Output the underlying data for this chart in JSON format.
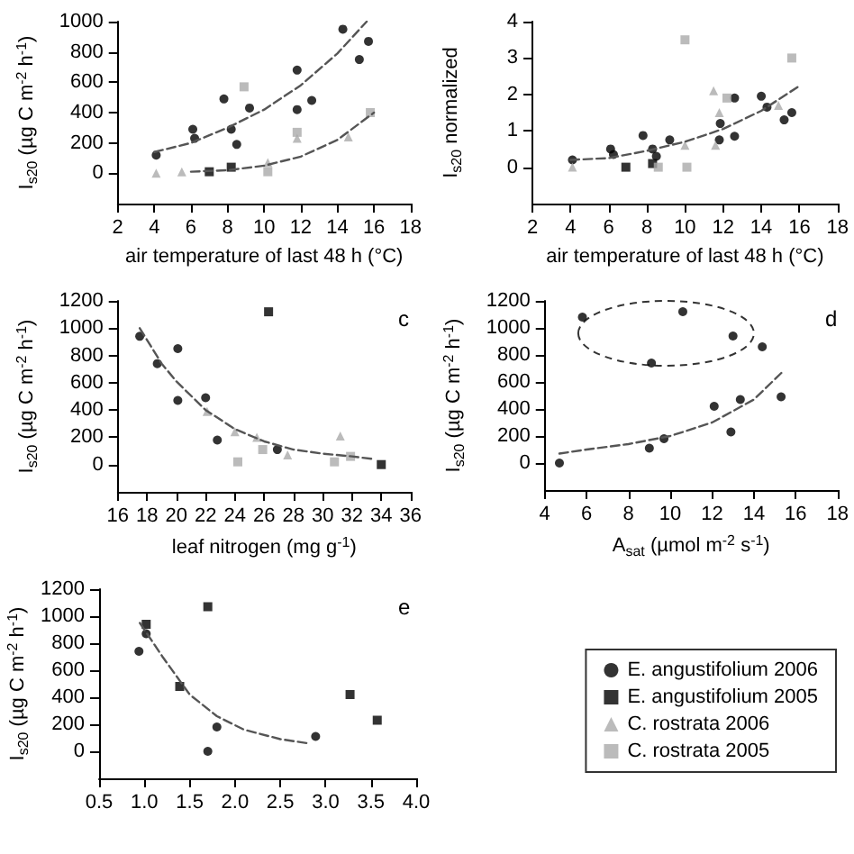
{
  "chart_data": [
    {
      "type": "scatter",
      "xlabel": "air temperature of last 48 h (°C)",
      "ylabel": "I$_{s20}$ (µg C m$^{-2}$ h$^{-1}$)",
      "xlim": [
        2,
        18
      ],
      "xticks": [
        2,
        4,
        6,
        8,
        10,
        12,
        14,
        16,
        18
      ],
      "ylim": [
        -200,
        1000
      ],
      "yticks": [
        0,
        200,
        400,
        600,
        800,
        1000
      ],
      "legend": false,
      "series": [
        {
          "color": "#000000",
          "marker": "circle",
          "x": [
            4.1,
            6.1,
            6.2,
            7.8,
            8.2,
            8.5,
            9.2,
            11.8,
            11.8,
            12.6,
            14.3,
            15.2,
            15.7
          ],
          "values": [
            120,
            290,
            230,
            490,
            290,
            190,
            430,
            680,
            420,
            480,
            950,
            750,
            870
          ]
        },
        {
          "color": "#000000",
          "marker": "square",
          "x": [
            7.0,
            8.2
          ],
          "values": [
            10,
            40
          ]
        },
        {
          "color": "#aaaaaa",
          "marker": "triangle",
          "x": [
            4.1,
            5.5,
            10.2,
            11.8,
            14.6
          ],
          "values": [
            0,
            10,
            70,
            230,
            240
          ]
        },
        {
          "color": "#aaaaaa",
          "marker": "square",
          "x": [
            8.9,
            10.2,
            11.8,
            15.8
          ],
          "values": [
            570,
            10,
            270,
            400
          ]
        },
        {
          "type": "line",
          "color": "#555555",
          "marker": "none",
          "line_style": "dashed",
          "x": [
            4,
            6,
            8,
            10,
            12,
            14,
            15.6
          ],
          "values": [
            140,
            200,
            300,
            420,
            580,
            790,
            1000
          ]
        },
        {
          "type": "line",
          "color": "#555555",
          "marker": "none",
          "line_style": "dashed",
          "x": [
            6,
            8,
            10,
            12,
            14,
            16
          ],
          "values": [
            10,
            20,
            50,
            110,
            220,
            400
          ]
        }
      ]
    },
    {
      "type": "scatter",
      "xlabel": "air temperature of last 48 h (°C)",
      "ylabel": "I$_{s20}$ normalized",
      "xlim": [
        2,
        18
      ],
      "xticks": [
        2,
        4,
        6,
        8,
        10,
        12,
        14,
        16,
        18
      ],
      "ylim": [
        -1,
        4
      ],
      "yticks": [
        0,
        1,
        2,
        3,
        4
      ],
      "legend": false,
      "series": [
        {
          "color": "#000000",
          "marker": "circle",
          "x": [
            4.1,
            6.1,
            6.25,
            7.8,
            8.3,
            8.5,
            9.2,
            11.85,
            11.8,
            12.6,
            12.6,
            14.0,
            14.3,
            15.2,
            15.6
          ],
          "values": [
            0.2,
            0.5,
            0.35,
            0.87,
            0.5,
            0.3,
            0.75,
            1.2,
            0.75,
            1.9,
            0.85,
            1.95,
            1.65,
            1.3,
            1.5
          ]
        },
        {
          "color": "#000000",
          "marker": "square",
          "x": [
            6.9,
            8.3
          ],
          "values": [
            0,
            0.1
          ]
        },
        {
          "color": "#aaaaaa",
          "marker": "triangle",
          "x": [
            4.1,
            10.0,
            11.5,
            11.8,
            11.6,
            14.9
          ],
          "values": [
            0,
            0.6,
            2.1,
            1.5,
            0.6,
            1.7
          ]
        },
        {
          "color": "#aaaaaa",
          "marker": "square",
          "x": [
            8.6,
            10.0,
            10.1,
            12.2,
            15.6
          ],
          "values": [
            0,
            3.5,
            0,
            1.9,
            3.0
          ]
        },
        {
          "type": "line",
          "color": "#555555",
          "marker": "none",
          "line_style": "dashed",
          "x": [
            4,
            6,
            8,
            10,
            12,
            14,
            15.9
          ],
          "values": [
            0.2,
            0.25,
            0.45,
            0.7,
            1.05,
            1.55,
            2.2
          ]
        }
      ]
    },
    {
      "type": "scatter",
      "xlabel": "leaf nitrogen (mg g$^{-1}$)",
      "ylabel": "I$_{s20}$ (µg C m$^{-2}$ h$^{-1}$)",
      "xlim": [
        16,
        36
      ],
      "xticks": [
        16,
        18,
        20,
        22,
        24,
        26,
        28,
        30,
        32,
        34,
        36
      ],
      "ylim": [
        -200,
        1200
      ],
      "yticks": [
        0,
        200,
        400,
        600,
        800,
        1000,
        1200
      ],
      "legend": false,
      "annotations": [
        "c"
      ],
      "series": [
        {
          "color": "#000000",
          "marker": "circle",
          "x": [
            17.5,
            18.7,
            20.1,
            20.1,
            22.0,
            22.8,
            26.9
          ],
          "values": [
            940,
            740,
            850,
            470,
            490,
            180,
            110
          ]
        },
        {
          "color": "#000000",
          "marker": "square",
          "x": [
            26.3,
            34.0
          ],
          "values": [
            1120,
            0
          ]
        },
        {
          "color": "#aaaaaa",
          "marker": "triangle",
          "x": [
            22.1,
            24.0,
            25.5,
            27.6,
            31.2
          ],
          "values": [
            390,
            240,
            200,
            70,
            210
          ]
        },
        {
          "color": "#aaaaaa",
          "marker": "square",
          "x": [
            24.2,
            25.9,
            30.8,
            31.9
          ],
          "values": [
            20,
            110,
            20,
            60
          ]
        },
        {
          "type": "line",
          "color": "#555555",
          "marker": "none",
          "line_style": "dashed",
          "x": [
            17.5,
            19,
            20,
            22,
            24,
            26,
            28,
            30,
            32,
            33.5
          ],
          "values": [
            1000,
            740,
            610,
            400,
            260,
            170,
            110,
            80,
            60,
            40
          ]
        }
      ]
    },
    {
      "type": "scatter",
      "xlabel": "A$_{sat}$ (µmol m$^{-2}$ s$^{-1}$)",
      "ylabel": "I$_{s20}$ (µg C m$^{-2}$ h$^{-1}$)",
      "xlim": [
        4,
        18
      ],
      "xticks": [
        4,
        6,
        8,
        10,
        12,
        14,
        16,
        18
      ],
      "ylim": [
        -200,
        1200
      ],
      "yticks": [
        0,
        200,
        400,
        600,
        800,
        1000,
        1200
      ],
      "legend": false,
      "annotations": [
        "d"
      ],
      "series": [
        {
          "color": "#000000",
          "marker": "circle",
          "x": [
            4.7,
            5.8,
            9.1,
            10.6,
            13.0,
            14.4,
            9.0,
            9.7,
            12.1,
            12.9,
            13.35,
            15.3
          ],
          "values": [
            0,
            1080,
            740,
            1120,
            940,
            860,
            110,
            180,
            420,
            230,
            470,
            490
          ]
        },
        {
          "type": "line",
          "color": "#555555",
          "marker": "none",
          "line_style": "dashed",
          "x": [
            4.7,
            6,
            8,
            10,
            12,
            14,
            15.4
          ],
          "values": [
            70,
            100,
            140,
            200,
            300,
            470,
            680
          ]
        }
      ]
    },
    {
      "type": "scatter",
      "ylabel": "I$_{s20}$ (µg C m$^{-2}$ h$^{-1}$)",
      "xlim": [
        0.5,
        4.0
      ],
      "xticks": [
        0.5,
        {
          "value": 1,
          "label": "1.0"
        },
        1.5,
        {
          "value": 2,
          "label": "2.0"
        },
        2.5,
        {
          "value": 3,
          "label": "3.0"
        },
        3.5,
        {
          "value": 4,
          "label": "4.0"
        }
      ],
      "ylim": [
        -200,
        1200
      ],
      "yticks": [
        0,
        200,
        400,
        600,
        800,
        1000,
        1200
      ],
      "legend": "right",
      "annotations": [
        "e"
      ],
      "series": [
        {
          "name": "E. angustifolium 2006",
          "color": "#000000",
          "marker": "circle",
          "x": [
            0.94,
            1.02,
            1.7,
            1.8,
            2.89
          ],
          "values": [
            740,
            870,
            0,
            180,
            110
          ]
        },
        {
          "name": "E. angustifolium 2005",
          "color": "#000000",
          "marker": "square",
          "x": [
            1.02,
            1.39,
            1.7,
            3.27,
            3.57
          ],
          "values": [
            940,
            480,
            1070,
            420,
            230
          ]
        },
        {
          "name": "C. rostrata 2006",
          "color": "#aaaaaa",
          "marker": "triangle"
        },
        {
          "name": "C. rostrata 2005",
          "color": "#aaaaaa",
          "marker": "square"
        },
        {
          "type": "line",
          "color": "#555555",
          "marker": "none",
          "line_style": "dashed",
          "x": [
            0.95,
            1.2,
            1.5,
            1.8,
            2.1,
            2.5,
            2.8
          ],
          "values": [
            950,
            700,
            420,
            260,
            160,
            90,
            60
          ]
        }
      ]
    }
  ]
}
